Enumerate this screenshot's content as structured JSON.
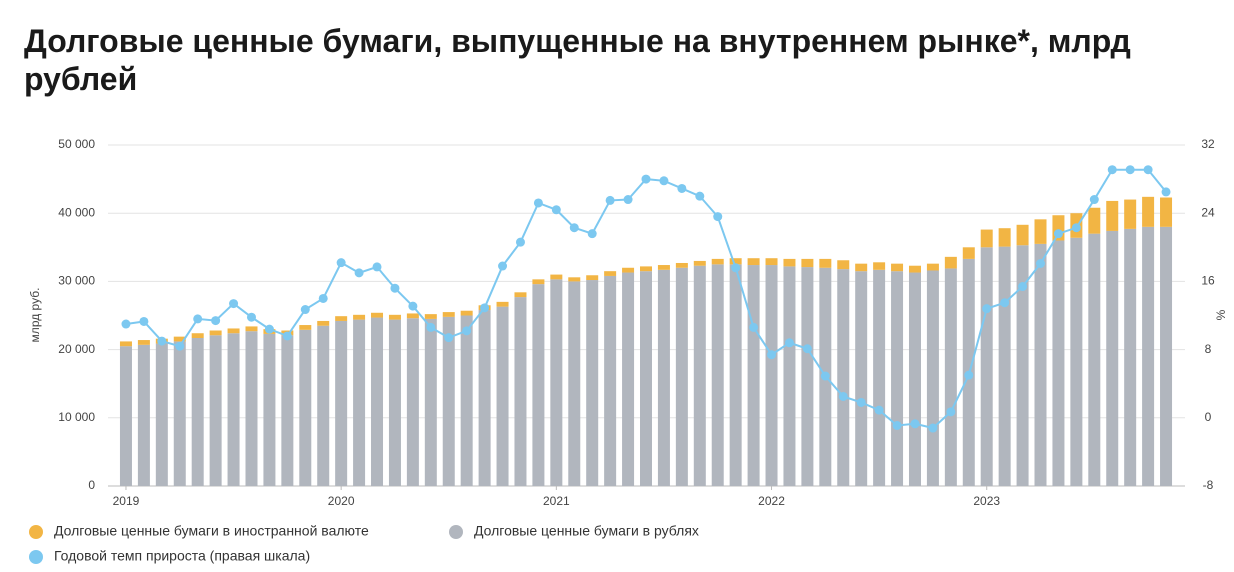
{
  "chart_data": {
    "type": "bar",
    "title": "Долговые ценные бумаги, выпущенные на внутреннем рынке*, млрд рублей",
    "ylabel": "млрд руб.",
    "y2label": "%",
    "categories": [
      "2019",
      null,
      null,
      null,
      null,
      null,
      null,
      null,
      null,
      null,
      null,
      null,
      "2020",
      null,
      null,
      null,
      null,
      null,
      null,
      null,
      null,
      null,
      null,
      null,
      "2021",
      null,
      null,
      null,
      null,
      null,
      null,
      null,
      null,
      null,
      null,
      null,
      "2022",
      null,
      null,
      null,
      null,
      null,
      null,
      null,
      null,
      null,
      null,
      null,
      "2023",
      null,
      null,
      null,
      null,
      null,
      null,
      null,
      null,
      null,
      null
    ],
    "stacked": true,
    "series": [
      {
        "name": "Долговые ценные бумаги в рублях",
        "color": "#b1b6be",
        "values": [
          20500,
          20700,
          20900,
          21200,
          21700,
          22100,
          22400,
          22700,
          22300,
          22100,
          22900,
          23500,
          24200,
          24400,
          24700,
          24400,
          24600,
          24500,
          24800,
          25000,
          25800,
          26300,
          27700,
          29600,
          30300,
          30000,
          30200,
          30800,
          31300,
          31500,
          31700,
          32000,
          32300,
          32500,
          32500,
          32400,
          32400,
          32200,
          32100,
          32000,
          31800,
          31500,
          31700,
          31500,
          31300,
          31600,
          31900,
          33300,
          35000,
          35100,
          35300,
          35500,
          36000,
          36400,
          37000,
          37400,
          37700,
          38000,
          38000
        ]
      },
      {
        "name": "Долговые ценные бумаги в иностранной валюте",
        "color": "#f2b544",
        "values": [
          700,
          700,
          700,
          700,
          700,
          700,
          700,
          700,
          700,
          700,
          700,
          700,
          700,
          700,
          700,
          700,
          700,
          700,
          700,
          700,
          700,
          700,
          700,
          700,
          700,
          600,
          700,
          700,
          700,
          700,
          700,
          700,
          700,
          800,
          900,
          1000,
          1000,
          1100,
          1200,
          1300,
          1300,
          1100,
          1100,
          1100,
          1000,
          1000,
          1700,
          1700,
          2600,
          2700,
          3000,
          3600,
          3700,
          3600,
          3800,
          4400,
          4300,
          4400,
          4300
        ]
      },
      {
        "name": "Годовой темп прироста (правая шкала)",
        "color": "#7cc8f0",
        "type": "line",
        "axis": "y2",
        "values": [
          11.0,
          11.3,
          9.0,
          8.4,
          11.6,
          11.4,
          13.4,
          11.8,
          10.4,
          9.6,
          12.7,
          14.0,
          18.2,
          17.0,
          17.7,
          15.2,
          13.1,
          10.6,
          9.4,
          10.2,
          12.9,
          17.8,
          20.6,
          25.2,
          24.4,
          22.3,
          21.6,
          25.5,
          25.6,
          28.0,
          27.8,
          26.9,
          26.0,
          23.6,
          17.6,
          10.6,
          7.4,
          8.8,
          8.1,
          4.9,
          2.5,
          1.8,
          0.9,
          -0.9,
          -0.7,
          -1.2,
          0.7,
          5.0,
          12.8,
          13.5,
          15.4,
          18.1,
          21.6,
          22.3,
          25.6,
          29.1,
          29.1,
          29.1,
          26.5
        ]
      }
    ],
    "ylim": [
      0,
      50000
    ],
    "yticks": [
      0,
      {
        "value": 10000,
        "label": "10 000"
      },
      {
        "value": 20000,
        "label": "20 000"
      },
      {
        "value": 30000,
        "label": "30 000"
      },
      {
        "value": 40000,
        "label": "40 000"
      },
      {
        "value": 50000,
        "label": "50 000"
      }
    ],
    "y2lim": [
      -8,
      32
    ],
    "y2ticks": [
      -8,
      0,
      8,
      16,
      24,
      32
    ],
    "grid": true,
    "legend": "bottom"
  }
}
